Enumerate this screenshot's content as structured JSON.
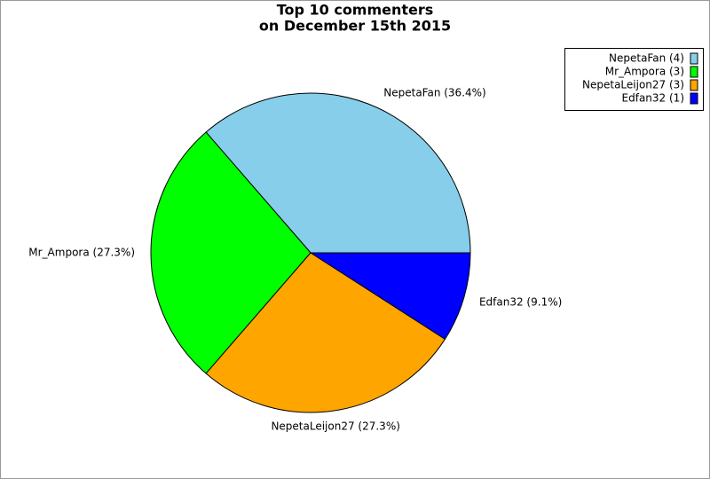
{
  "chart_data": {
    "type": "pie",
    "title": [
      "Top 10 commenters",
      "on December 15th 2015"
    ],
    "categories": [
      "NepetaFan",
      "Mr_Ampora",
      "NepetaLeijon27",
      "Edfan32"
    ],
    "values": [
      36.4,
      27.3,
      27.3,
      9.1
    ],
    "value_labels": [
      "NepetaFan (36.4%)",
      "Mr_Ampora (27.3%)",
      "NepetaLeijon27 (27.3%)",
      "Edfan32 (9.1%)"
    ],
    "legend_labels": [
      "NepetaFan (4)",
      "Mr_Ampora (3)",
      "NepetaLeijon27 (3)",
      "Edfan32 (1)"
    ],
    "colors": [
      "#87ceeb",
      "#00ff00",
      "#ffa500",
      "#0000ff"
    ],
    "legend": "upper right"
  }
}
